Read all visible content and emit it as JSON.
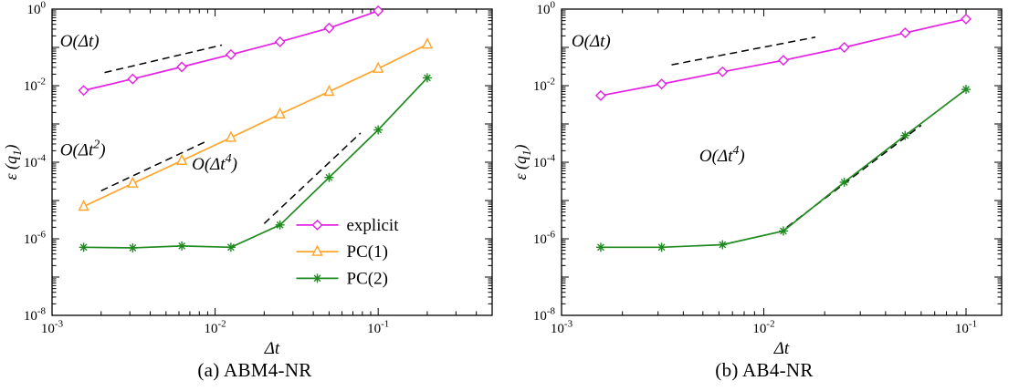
{
  "figure": {
    "captions": [
      "(a)  ABM4-NR",
      "(b)  AB4-NR"
    ]
  },
  "colors": {
    "explicit": "#e421e4",
    "pc1": "#ffa428",
    "pc2": "#1f8a1f",
    "axis": "#000000",
    "guide": "#000000"
  },
  "chart_data": [
    {
      "type": "line",
      "title": "",
      "xlabel": "Δt",
      "ylabel": "ε (q_1)",
      "xscale": "log",
      "yscale": "log",
      "xlim": [
        0.001,
        0.5
      ],
      "ylim": [
        1e-08,
        1
      ],
      "xticks": [
        -3,
        -2,
        -1
      ],
      "yticks": [
        0,
        -2,
        -4,
        -6,
        -8
      ],
      "legend": true,
      "series": [
        {
          "name": "explicit",
          "color": "#e421e4",
          "marker": "diamond",
          "x": [
            0.0015625,
            0.003125,
            0.00625,
            0.0125,
            0.025,
            0.05,
            0.1
          ],
          "y": [
            0.0075,
            0.015,
            0.031,
            0.065,
            0.14,
            0.32,
            0.9
          ]
        },
        {
          "name": "PC(1)",
          "color": "#ffa428",
          "marker": "triangle",
          "x": [
            0.0015625,
            0.003125,
            0.00625,
            0.0125,
            0.025,
            0.05,
            0.1,
            0.2
          ],
          "y": [
            7e-06,
            2.8e-05,
            0.00011,
            0.00044,
            0.0018,
            0.007,
            0.028,
            0.12
          ]
        },
        {
          "name": "PC(2)",
          "color": "#1f8a1f",
          "marker": "star",
          "x": [
            0.0015625,
            0.003125,
            0.00625,
            0.0125,
            0.025,
            0.05,
            0.1,
            0.2
          ],
          "y": [
            6e-07,
            5.8e-07,
            6.5e-07,
            6e-07,
            2.3e-06,
            4e-05,
            0.0007,
            0.016
          ]
        }
      ],
      "annotations": [
        {
          "label": "O(Δt)",
          "lx": 0.00112,
          "ly": 0.105,
          "x1": 0.0021,
          "y1": 0.022,
          "x2": 0.011,
          "y2": 0.115
        },
        {
          "label": "O(Δt^2)",
          "lx": 0.00112,
          "ly": 0.00015,
          "x1": 0.002,
          "y1": 1.8e-05,
          "x2": 0.009,
          "y2": 0.000365
        },
        {
          "label": "O(Δt^4)",
          "lx": 0.0072,
          "ly": 6.5e-05,
          "x1": 0.02,
          "y1": 2.5e-06,
          "x2": 0.078,
          "y2": 0.00058
        }
      ]
    },
    {
      "type": "line",
      "title": "",
      "xlabel": "Δt",
      "ylabel": "ε (q_1)",
      "xscale": "log",
      "yscale": "log",
      "xlim": [
        0.001,
        0.15
      ],
      "ylim": [
        1e-08,
        1
      ],
      "xticks": [
        -3,
        -2,
        -1
      ],
      "yticks": [
        0,
        -2,
        -4,
        -6,
        -8
      ],
      "legend": false,
      "series": [
        {
          "name": "explicit",
          "color": "#e421e4",
          "marker": "diamond",
          "x": [
            0.0015625,
            0.003125,
            0.00625,
            0.0125,
            0.025,
            0.05,
            0.1
          ],
          "y": [
            0.0055,
            0.011,
            0.023,
            0.046,
            0.1,
            0.24,
            0.55
          ]
        },
        {
          "name": "PC(2)",
          "color": "#1f8a1f",
          "marker": "star",
          "x": [
            0.0015625,
            0.003125,
            0.00625,
            0.0125,
            0.025,
            0.05,
            0.1
          ],
          "y": [
            6e-07,
            6e-07,
            7e-07,
            1.6e-06,
            3e-05,
            0.0005,
            0.008
          ]
        }
      ],
      "annotations": [
        {
          "label": "O(Δt)",
          "lx": 0.00112,
          "ly": 0.105,
          "x1": 0.0035,
          "y1": 0.035,
          "x2": 0.018,
          "y2": 0.185
        },
        {
          "label": "O(Δt^4)",
          "lx": 0.0048,
          "ly": 0.000105,
          "x1": 0.013,
          "y1": 2e-06,
          "x2": 0.06,
          "y2": 0.00092
        }
      ]
    }
  ]
}
